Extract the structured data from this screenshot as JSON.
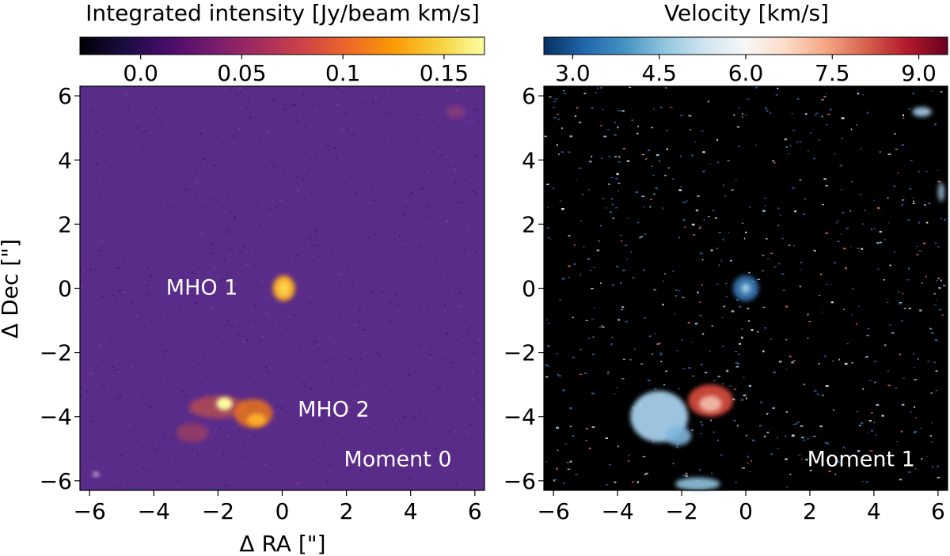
{
  "chart_data": [
    {
      "type": "heatmap",
      "title": "Moment 0",
      "colorbar_label": "Integrated intensity [Jy/beam km/s]",
      "colorbar_range": [
        -0.03,
        0.17
      ],
      "colorbar_ticks": [
        {
          "value": 0.0,
          "label": "0.0"
        },
        {
          "value": 0.05,
          "label": "0.05"
        },
        {
          "value": 0.1,
          "label": "0.1"
        },
        {
          "value": 0.15,
          "label": "0.15"
        }
      ],
      "colormap": [
        "#000004",
        "#1b0c41",
        "#4a0c6b",
        "#781c6d",
        "#a52c60",
        "#cf4446",
        "#ed6925",
        "#fb9b06",
        "#f7d13d",
        "#fcffa4"
      ],
      "background_color": "#5a2c8a",
      "xlabel": "Δ RA [\"]",
      "ylabel": "Δ Dec [\"]",
      "xlim": [
        -6.3,
        6.3
      ],
      "ylim": [
        -6.3,
        6.3
      ],
      "xticks": [
        {
          "value": -6,
          "label": "−6"
        },
        {
          "value": -4,
          "label": "−4"
        },
        {
          "value": -2,
          "label": "−2"
        },
        {
          "value": 0,
          "label": "0"
        },
        {
          "value": 2,
          "label": "2"
        },
        {
          "value": 4,
          "label": "4"
        },
        {
          "value": 6,
          "label": "6"
        }
      ],
      "yticks": [
        {
          "value": 6,
          "label": "6"
        },
        {
          "value": 4,
          "label": "4"
        },
        {
          "value": 2,
          "label": "2"
        },
        {
          "value": 0,
          "label": "0"
        },
        {
          "value": -2,
          "label": "−2"
        },
        {
          "value": -4,
          "label": "−4"
        },
        {
          "value": -6,
          "label": "−6"
        }
      ],
      "annotations": [
        {
          "text": "MHO 1",
          "x": -2.5,
          "y": -0.2
        },
        {
          "text": "MHO 2",
          "x": 1.6,
          "y": -4.0
        },
        {
          "text": "Moment 0",
          "x": 3.6,
          "y": -5.55
        }
      ],
      "emission": [
        {
          "x": 0.05,
          "y": 0.0,
          "sx": 0.35,
          "sy": 0.4,
          "color": "#f5a623",
          "opacity": 0.95
        },
        {
          "x": 0.05,
          "y": 0.0,
          "sx": 0.2,
          "sy": 0.25,
          "color": "#fdd04a",
          "opacity": 1.0
        },
        {
          "x": -2.0,
          "y": -3.7,
          "sx": 0.9,
          "sy": 0.35,
          "color": "#c0504d",
          "opacity": 0.75
        },
        {
          "x": -1.8,
          "y": -3.6,
          "sx": 0.25,
          "sy": 0.2,
          "color": "#fcff9e",
          "opacity": 1.0
        },
        {
          "x": -0.9,
          "y": -3.9,
          "sx": 0.6,
          "sy": 0.45,
          "color": "#e8731e",
          "opacity": 0.85
        },
        {
          "x": -0.8,
          "y": -4.1,
          "sx": 0.3,
          "sy": 0.2,
          "color": "#fbaa2a",
          "opacity": 1.0
        },
        {
          "x": -2.8,
          "y": -4.5,
          "sx": 0.5,
          "sy": 0.3,
          "color": "#a5405d",
          "opacity": 0.7
        },
        {
          "x": 5.4,
          "y": 5.5,
          "sx": 0.3,
          "sy": 0.2,
          "color": "#8a3e7a",
          "opacity": 0.8
        },
        {
          "x": -5.8,
          "y": -5.8,
          "sx": 0.08,
          "sy": 0.06,
          "color": "#ffffff",
          "opacity": 1.0
        }
      ]
    },
    {
      "type": "heatmap",
      "title": "Moment 1",
      "colorbar_label": "Velocity [km/s]",
      "colorbar_range": [
        2.5,
        9.5
      ],
      "colorbar_ticks": [
        {
          "value": 3.0,
          "label": "3.0"
        },
        {
          "value": 4.5,
          "label": "4.5"
        },
        {
          "value": 6.0,
          "label": "6.0"
        },
        {
          "value": 7.5,
          "label": "7.5"
        },
        {
          "value": 9.0,
          "label": "9.0"
        }
      ],
      "colormap": [
        "#053061",
        "#2166ac",
        "#4393c3",
        "#92c5de",
        "#d1e5f0",
        "#f7f7f7",
        "#fddbc7",
        "#f4a582",
        "#d6604d",
        "#b2182b",
        "#67001f"
      ],
      "background_color": "#000000",
      "xlabel": "",
      "ylabel": "",
      "xlim": [
        -6.3,
        6.3
      ],
      "ylim": [
        -6.3,
        6.3
      ],
      "xticks": [
        {
          "value": -6,
          "label": "−6"
        },
        {
          "value": -4,
          "label": "−4"
        },
        {
          "value": -2,
          "label": "−2"
        },
        {
          "value": 0,
          "label": "0"
        },
        {
          "value": 2,
          "label": "2"
        },
        {
          "value": 4,
          "label": "4"
        },
        {
          "value": 6,
          "label": "6"
        }
      ],
      "yticks": [
        {
          "value": 6,
          "label": "6"
        },
        {
          "value": 4,
          "label": "4"
        },
        {
          "value": 2,
          "label": "2"
        },
        {
          "value": 0,
          "label": "0"
        },
        {
          "value": -2,
          "label": "−2"
        },
        {
          "value": -4,
          "label": "−4"
        },
        {
          "value": -6,
          "label": "−6"
        }
      ],
      "annotations": [
        {
          "text": "Moment 1",
          "x": 3.6,
          "y": -5.55
        }
      ],
      "emission": [
        {
          "x": 0.0,
          "y": 0.0,
          "sx": 0.4,
          "sy": 0.4,
          "color": "#3a7ab8",
          "opacity": 0.9
        },
        {
          "x": 0.0,
          "y": 0.0,
          "sx": 0.15,
          "sy": 0.15,
          "color": "#9cc9e6",
          "opacity": 1.0
        },
        {
          "x": -2.7,
          "y": -4.0,
          "sx": 0.9,
          "sy": 0.8,
          "color": "#a6cfea",
          "opacity": 0.95
        },
        {
          "x": -2.1,
          "y": -4.6,
          "sx": 0.4,
          "sy": 0.3,
          "color": "#7fb5db",
          "opacity": 0.9
        },
        {
          "x": -1.1,
          "y": -3.5,
          "sx": 0.7,
          "sy": 0.5,
          "color": "#d1483d",
          "opacity": 0.95
        },
        {
          "x": -1.1,
          "y": -3.6,
          "sx": 0.35,
          "sy": 0.25,
          "color": "#f4c6b5",
          "opacity": 0.85
        },
        {
          "x": -1.5,
          "y": -6.1,
          "sx": 0.7,
          "sy": 0.2,
          "color": "#92c5de",
          "opacity": 0.9
        },
        {
          "x": 5.5,
          "y": 5.5,
          "sx": 0.3,
          "sy": 0.15,
          "color": "#a6cfea",
          "opacity": 0.9
        },
        {
          "x": 6.1,
          "y": 3.0,
          "sx": 0.1,
          "sy": 0.3,
          "color": "#a6cfea",
          "opacity": 0.8
        }
      ]
    }
  ]
}
